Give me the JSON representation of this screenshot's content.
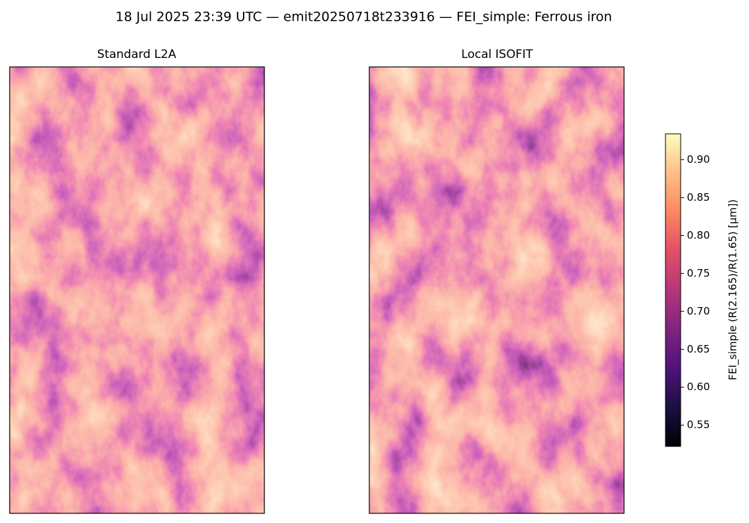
{
  "chart_data": {
    "type": "heatmap",
    "title": "18 Jul 2025 23:39 UTC — emit20250718t233916 — FEI_simple: Ferrous iron",
    "panels": [
      {
        "title": "Standard L2A"
      },
      {
        "title": "Local ISOFIT"
      }
    ],
    "colormap": "magma",
    "colorbar": {
      "label": "FEI_simple  (R(2.165)/R(1.65)  [µm])",
      "ylim": [
        0.522,
        0.934
      ],
      "yticks": [
        0.55,
        {
          "value": 0.6,
          "label": "0.60"
        },
        0.65,
        {
          "value": 0.7,
          "label": "0.70"
        },
        0.75,
        {
          "value": 0.8,
          "label": "0.80"
        },
        0.85,
        {
          "value": 0.9,
          "label": "0.90"
        }
      ]
    }
  }
}
